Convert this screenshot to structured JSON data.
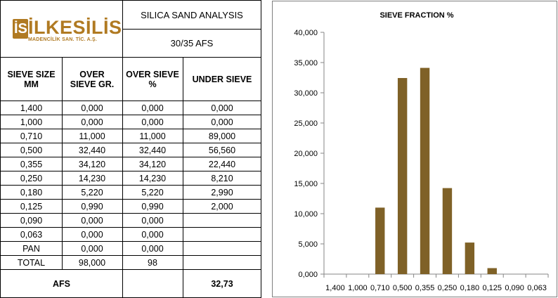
{
  "company": {
    "logo_mark": "İS",
    "logo_word": "İLKESİLİS",
    "logo_sub": "MADENCİLİK SAN. TİC. A.Ş."
  },
  "report": {
    "title": "SILICA SAND ANALYSIS",
    "grade": "30/35 AFS"
  },
  "table": {
    "headers": [
      "SIEVE SIZE MM",
      "OVER SIEVE GR.",
      "OVER SIEVE %",
      "UNDER SIEVE"
    ],
    "rows": [
      [
        "1,400",
        "0,000",
        "0,000",
        "0,000"
      ],
      [
        "1,000",
        "0,000",
        "0,000",
        "0,000"
      ],
      [
        "0,710",
        "11,000",
        "11,000",
        "89,000"
      ],
      [
        "0,500",
        "32,440",
        "32,440",
        "56,560"
      ],
      [
        "0,355",
        "34,120",
        "34,120",
        "22,440"
      ],
      [
        "0,250",
        "14,230",
        "14,230",
        "8,210"
      ],
      [
        "0,180",
        "5,220",
        "5,220",
        "2,990"
      ],
      [
        "0,125",
        "0,990",
        "0,990",
        "2,000"
      ],
      [
        "0,090",
        "0,000",
        "0,000",
        ""
      ],
      [
        "0,063",
        "0,000",
        "0,000",
        ""
      ],
      [
        "PAN",
        "0,000",
        "0,000",
        ""
      ],
      [
        "TOTAL",
        "98,000",
        "98",
        ""
      ]
    ],
    "afs_label": "AFS",
    "afs_value": "32,73"
  },
  "chart_data": {
    "type": "bar",
    "title": "SIEVE FRACTION %",
    "categories": [
      "1,400",
      "1,000",
      "0,710",
      "0,500",
      "0,355",
      "0,250",
      "0,180",
      "0,125",
      "0,090",
      "0,063"
    ],
    "values": [
      0,
      0,
      11.0,
      32.44,
      34.12,
      14.23,
      5.22,
      0.99,
      0,
      0
    ],
    "ylim": [
      0,
      40
    ],
    "yticks": [
      0,
      5,
      10,
      15,
      20,
      25,
      30,
      35,
      40
    ],
    "ytick_labels": [
      "0,000",
      "5,000",
      "10,000",
      "15,000",
      "20,000",
      "25,000",
      "30,000",
      "35,000",
      "40,000"
    ],
    "bar_color": "#7f6127",
    "grid": false,
    "legend": "none"
  }
}
